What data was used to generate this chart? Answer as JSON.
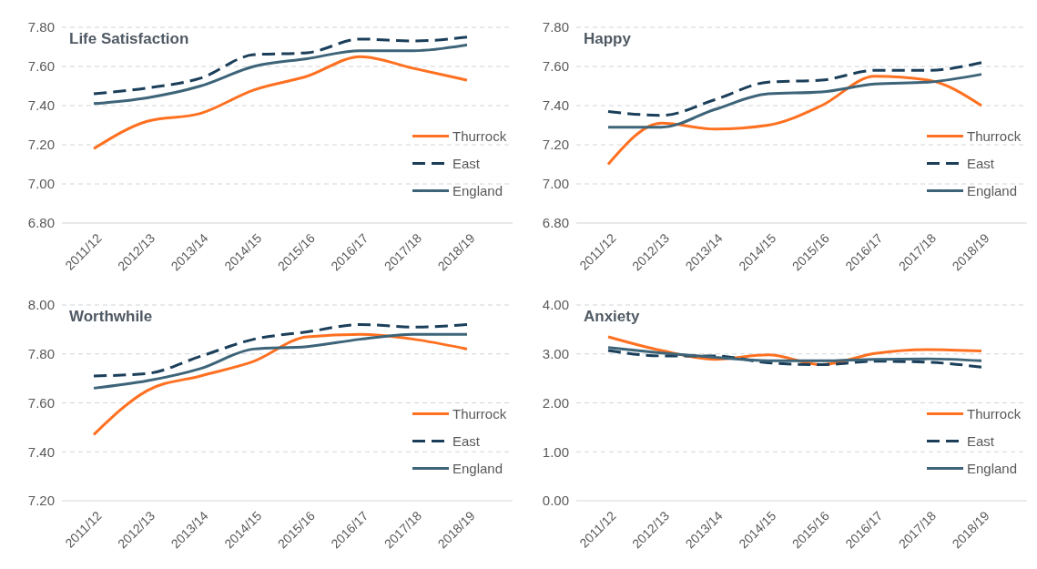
{
  "chart_data": [
    {
      "type": "line",
      "title": "Life Satisfaction",
      "categories": [
        "2011/12",
        "2012/13",
        "2013/14",
        "2014/15",
        "2015/16",
        "2016/17",
        "2017/18",
        "2018/19"
      ],
      "ylim": [
        6.8,
        7.8
      ],
      "yticks": [
        {
          "value": 6.8,
          "label": "6.80"
        },
        {
          "value": 7.0,
          "label": "7.00"
        },
        {
          "value": 7.2,
          "label": "7.20"
        },
        {
          "value": 7.4,
          "label": "7.40"
        },
        {
          "value": 7.6,
          "label": "7.60"
        },
        {
          "value": 7.8,
          "label": "7.80"
        }
      ],
      "grid": "y",
      "legend": "right",
      "series": [
        {
          "name": "Thurrock",
          "color": "#ff7020",
          "line_style": "solid",
          "values": [
            7.18,
            7.32,
            7.36,
            7.48,
            7.55,
            7.65,
            7.59,
            7.53
          ]
        },
        {
          "name": "East",
          "color": "#1b3f5a",
          "line_style": "dashed",
          "values": [
            7.46,
            7.49,
            7.54,
            7.66,
            7.67,
            7.74,
            7.73,
            7.75
          ]
        },
        {
          "name": "England",
          "color": "#3d6478",
          "line_style": "solid",
          "values": [
            7.41,
            7.44,
            7.5,
            7.6,
            7.64,
            7.68,
            7.68,
            7.71
          ]
        }
      ]
    },
    {
      "type": "line",
      "title": "Happy",
      "categories": [
        "2011/12",
        "2012/13",
        "2013/14",
        "2014/15",
        "2015/16",
        "2016/17",
        "2017/18",
        "2018/19"
      ],
      "ylim": [
        6.8,
        7.8
      ],
      "yticks": [
        {
          "value": 6.8,
          "label": "6.80"
        },
        {
          "value": 7.0,
          "label": "7.00"
        },
        {
          "value": 7.2,
          "label": "7.20"
        },
        {
          "value": 7.4,
          "label": "7.40"
        },
        {
          "value": 7.6,
          "label": "7.60"
        },
        {
          "value": 7.8,
          "label": "7.80"
        }
      ],
      "grid": "y",
      "legend": "right",
      "series": [
        {
          "name": "Thurrock",
          "color": "#ff7020",
          "line_style": "solid",
          "values": [
            7.1,
            7.31,
            7.28,
            7.3,
            7.4,
            7.55,
            7.53,
            7.4
          ]
        },
        {
          "name": "East",
          "color": "#1b3f5a",
          "line_style": "dashed",
          "values": [
            7.37,
            7.35,
            7.43,
            7.52,
            7.53,
            7.58,
            7.58,
            7.62
          ]
        },
        {
          "name": "England",
          "color": "#3d6478",
          "line_style": "solid",
          "values": [
            7.29,
            7.29,
            7.38,
            7.46,
            7.47,
            7.51,
            7.52,
            7.56
          ]
        }
      ]
    },
    {
      "type": "line",
      "title": "Worthwhile",
      "categories": [
        "2011/12",
        "2012/13",
        "2013/14",
        "2014/15",
        "2015/16",
        "2016/17",
        "2017/18",
        "2018/19"
      ],
      "ylim": [
        7.2,
        8.0
      ],
      "yticks": [
        {
          "value": 7.2,
          "label": "7.20"
        },
        {
          "value": 7.4,
          "label": "7.40"
        },
        {
          "value": 7.6,
          "label": "7.60"
        },
        {
          "value": 7.8,
          "label": "7.80"
        },
        {
          "value": 8.0,
          "label": "8.00"
        }
      ],
      "grid": "y",
      "legend": "right",
      "series": [
        {
          "name": "Thurrock",
          "color": "#ff7020",
          "line_style": "solid",
          "values": [
            7.47,
            7.65,
            7.71,
            7.77,
            7.87,
            7.88,
            7.86,
            7.82
          ]
        },
        {
          "name": "East",
          "color": "#1b3f5a",
          "line_style": "dashed",
          "values": [
            7.71,
            7.72,
            7.79,
            7.86,
            7.89,
            7.92,
            7.91,
            7.92
          ]
        },
        {
          "name": "England",
          "color": "#3d6478",
          "line_style": "solid",
          "values": [
            7.66,
            7.69,
            7.74,
            7.82,
            7.83,
            7.86,
            7.88,
            7.88
          ]
        }
      ]
    },
    {
      "type": "line",
      "title": "Anxiety",
      "categories": [
        "2011/12",
        "2012/13",
        "2013/14",
        "2014/15",
        "2015/16",
        "2016/17",
        "2017/18",
        "2018/19"
      ],
      "ylim": [
        0,
        4
      ],
      "yticks": [
        {
          "value": 0,
          "label": "0.00"
        },
        {
          "value": 1,
          "label": "1.00"
        },
        {
          "value": 2,
          "label": "2.00"
        },
        {
          "value": 3,
          "label": "3.00"
        },
        {
          "value": 4,
          "label": "4.00"
        }
      ],
      "grid": "y",
      "legend": "right",
      "series": [
        {
          "name": "Thurrock",
          "color": "#ff7020",
          "line_style": "solid",
          "values": [
            3.35,
            3.07,
            2.89,
            2.98,
            2.78,
            3.01,
            3.09,
            3.06
          ]
        },
        {
          "name": "East",
          "color": "#1b3f5a",
          "line_style": "dashed",
          "values": [
            3.07,
            2.96,
            2.96,
            2.82,
            2.78,
            2.85,
            2.83,
            2.73
          ]
        },
        {
          "name": "England",
          "color": "#3d6478",
          "line_style": "solid",
          "values": [
            3.13,
            3.02,
            2.93,
            2.86,
            2.86,
            2.89,
            2.9,
            2.86
          ]
        }
      ]
    }
  ]
}
